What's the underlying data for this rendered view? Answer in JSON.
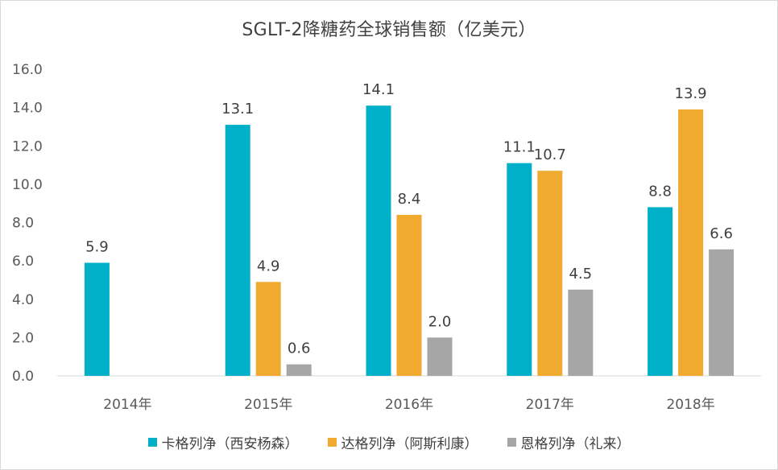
{
  "chart_data": {
    "type": "bar",
    "title": "SGLT-2降糖药全球销售额（亿美元）",
    "categories": [
      "2014年",
      "2015年",
      "2016年",
      "2017年",
      "2018年"
    ],
    "series": [
      {
        "name": "卡格列净（西安杨森）",
        "color": "#00b0c8",
        "values": [
          5.9,
          13.1,
          14.1,
          11.1,
          8.8
        ]
      },
      {
        "name": "达格列净（阿斯利康）",
        "color": "#f0aa30",
        "values": [
          null,
          4.9,
          8.4,
          10.7,
          13.9
        ]
      },
      {
        "name": "恩格列净（礼来）",
        "color": "#a6a6a6",
        "values": [
          null,
          0.6,
          2.0,
          4.5,
          6.6
        ]
      }
    ],
    "ylim": [
      0,
      16
    ],
    "yticks": [
      "0.0",
      "2.0",
      "4.0",
      "6.0",
      "8.0",
      "10.0",
      "12.0",
      "14.0",
      "16.0"
    ],
    "legend_position": "bottom",
    "grid": false
  }
}
